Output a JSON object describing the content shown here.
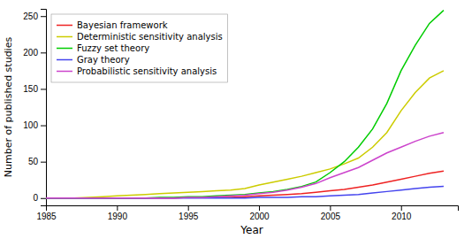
{
  "chart_data": {
    "type": "line",
    "xlabel": "Year",
    "ylabel": "Number of published studies",
    "x": [
      1985,
      1986,
      1987,
      1988,
      1989,
      1990,
      1991,
      1992,
      1993,
      1994,
      1995,
      1996,
      1997,
      1998,
      1999,
      2000,
      2001,
      2002,
      2003,
      2004,
      2005,
      2006,
      2007,
      2008,
      2009,
      2010,
      2011,
      2012,
      2013
    ],
    "series": [
      {
        "name": "Bayesian framework",
        "color": "#ee2222",
        "values": [
          0,
          0,
          0,
          0,
          0,
          0,
          0,
          0,
          0,
          0,
          1,
          1,
          1,
          1,
          2,
          3,
          4,
          5,
          6,
          8,
          10,
          12,
          15,
          18,
          22,
          26,
          30,
          34,
          37
        ]
      },
      {
        "name": "Deterministic sensitivity analysis",
        "color": "#cccc00",
        "values": [
          0,
          0,
          0,
          1,
          2,
          3,
          4,
          5,
          6,
          7,
          8,
          9,
          10,
          11,
          13,
          18,
          22,
          26,
          30,
          35,
          40,
          47,
          55,
          70,
          90,
          120,
          145,
          165,
          175
        ]
      },
      {
        "name": "Fuzzy set theory",
        "color": "#00cc00",
        "values": [
          0,
          0,
          0,
          0,
          0,
          0,
          0,
          0,
          1,
          1,
          2,
          2,
          3,
          4,
          5,
          7,
          9,
          12,
          16,
          22,
          35,
          50,
          70,
          95,
          130,
          175,
          210,
          240,
          258
        ]
      },
      {
        "name": "Gray theory",
        "color": "#4444ee",
        "values": [
          0,
          0,
          0,
          0,
          0,
          0,
          0,
          0,
          0,
          0,
          0,
          0,
          0,
          0,
          0,
          1,
          1,
          1,
          2,
          2,
          3,
          4,
          5,
          7,
          9,
          11,
          13,
          15,
          16
        ]
      },
      {
        "name": "Probabilistic sensitivity analysis",
        "color": "#cc44cc",
        "values": [
          0,
          0,
          0,
          0,
          0,
          0,
          0,
          0,
          0,
          0,
          1,
          1,
          2,
          3,
          4,
          6,
          8,
          11,
          15,
          20,
          28,
          35,
          42,
          52,
          62,
          70,
          78,
          85,
          90
        ]
      }
    ],
    "xlim": [
      1985,
      2014
    ],
    "ylim": [
      -10,
      260
    ],
    "xticks": [
      1985,
      1990,
      1995,
      2000,
      2005,
      2010
    ],
    "yticks": [
      0,
      50,
      100,
      150,
      200,
      250
    ],
    "grid": false,
    "legend": "upper left"
  }
}
